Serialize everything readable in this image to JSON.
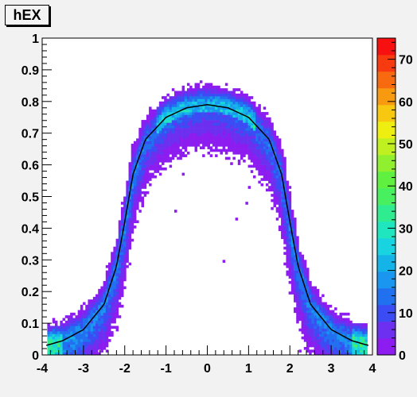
{
  "chart_data": {
    "type": "heatmap",
    "title": "hEX",
    "xlabel": "",
    "ylabel": "",
    "xlim": [
      -4,
      4
    ],
    "ylim": [
      0,
      1
    ],
    "x_ticks": [
      "-4",
      "-3",
      "-2",
      "-1",
      "0",
      "1",
      "2",
      "3",
      "4"
    ],
    "y_ticks": [
      "0",
      "0.1",
      "0.2",
      "0.3",
      "0.4",
      "0.5",
      "0.6",
      "0.7",
      "0.8",
      "0.9",
      "1"
    ],
    "palette_range": [
      0,
      75
    ],
    "palette_ticks": [
      "0",
      "10",
      "20",
      "30",
      "40",
      "50",
      "60",
      "70"
    ],
    "palette_colors": [
      "#8c1cf0",
      "#6d2ff0",
      "#3c4cf4",
      "#2070f0",
      "#1a96f0",
      "#14b4e8",
      "#18d4e0",
      "#20e6c0",
      "#30ec90",
      "#48f060",
      "#60f040",
      "#90f030",
      "#c0f020",
      "#eeee10",
      "#f8c810",
      "#f89a10",
      "#f86a10",
      "#f83a10",
      "#f81010"
    ],
    "band": {
      "description_values": "density band centered on curve",
      "curve_points": [
        [
          -3.9,
          0.03
        ],
        [
          -3.5,
          0.045
        ],
        [
          -3.0,
          0.08
        ],
        [
          -2.5,
          0.16
        ],
        [
          -2.2,
          0.28
        ],
        [
          -2.0,
          0.42
        ],
        [
          -1.8,
          0.57
        ],
        [
          -1.5,
          0.68
        ],
        [
          -1.0,
          0.75
        ],
        [
          -0.5,
          0.78
        ],
        [
          0.0,
          0.79
        ],
        [
          0.5,
          0.78
        ],
        [
          1.0,
          0.75
        ],
        [
          1.5,
          0.68
        ],
        [
          1.8,
          0.57
        ],
        [
          2.0,
          0.42
        ],
        [
          2.2,
          0.28
        ],
        [
          2.5,
          0.16
        ],
        [
          3.0,
          0.08
        ],
        [
          3.5,
          0.045
        ],
        [
          3.9,
          0.03
        ]
      ]
    },
    "fit_line_color": "#000000"
  }
}
